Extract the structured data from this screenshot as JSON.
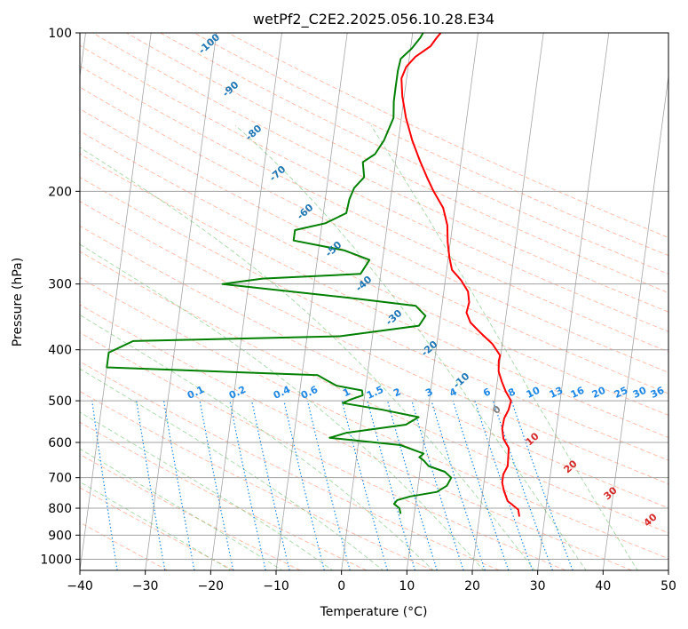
{
  "chart_data": {
    "type": "line",
    "title": "wetPf2_C2E2.2025.056.10.28.E34",
    "xlabel": "Temperature (°C)",
    "ylabel": "Pressure (hPa)",
    "xlim": [
      -40,
      50
    ],
    "ylim": [
      1050,
      100
    ],
    "y_scale": "log",
    "grid": true,
    "x_ticks": [
      "−40",
      "−30",
      "−20",
      "−10",
      "0",
      "10",
      "20",
      "30",
      "40",
      "50"
    ],
    "y_ticks": [
      {
        "p": 100,
        "label": "100"
      },
      {
        "p": 200,
        "label": "200"
      },
      {
        "p": 300,
        "label": "300"
      },
      {
        "p": 400,
        "label": "400"
      },
      {
        "p": 500,
        "label": "500"
      },
      {
        "p": 600,
        "label": "600"
      },
      {
        "p": 700,
        "label": "700"
      },
      {
        "p": 800,
        "label": "800"
      },
      {
        "p": 900,
        "label": "900"
      },
      {
        "p": 1000,
        "label": "1000"
      }
    ],
    "series": [
      {
        "color": "#ff0000",
        "points": [
          [
            26.1,
            830
          ],
          [
            25.8,
            805
          ],
          [
            24.0,
            775
          ],
          [
            23.2,
            740
          ],
          [
            22.8,
            715
          ],
          [
            22.8,
            690
          ],
          [
            23.3,
            665
          ],
          [
            23.2,
            640
          ],
          [
            23.1,
            615
          ],
          [
            22.1,
            590
          ],
          [
            21.7,
            565
          ],
          [
            21.8,
            540
          ],
          [
            22.3,
            520
          ],
          [
            22.5,
            500
          ],
          [
            21.5,
            480
          ],
          [
            20.7,
            460
          ],
          [
            20.0,
            440
          ],
          [
            19.8,
            420
          ],
          [
            19.9,
            410
          ],
          [
            18.5,
            390
          ],
          [
            16.3,
            370
          ],
          [
            14.7,
            355
          ],
          [
            13.9,
            340
          ],
          [
            14.1,
            325
          ],
          [
            13.7,
            310
          ],
          [
            12.4,
            295
          ],
          [
            10.8,
            282
          ],
          [
            10.2,
            268
          ],
          [
            9.6,
            250
          ],
          [
            9.2,
            232
          ],
          [
            8.2,
            215
          ],
          [
            6.4,
            200
          ],
          [
            5.1,
            188
          ],
          [
            3.7,
            175
          ],
          [
            2.1,
            160
          ],
          [
            0.7,
            145
          ],
          [
            -0.3,
            132
          ],
          [
            -0.8,
            122
          ],
          [
            -0.3,
            116
          ],
          [
            0.9,
            111
          ],
          [
            3.0,
            106
          ],
          [
            3.8,
            102
          ],
          [
            4.3,
            100
          ]
        ]
      },
      {
        "color": "#008000",
        "points": [
          [
            7.9,
            820
          ],
          [
            7.6,
            800
          ],
          [
            6.7,
            785
          ],
          [
            7.1,
            772
          ],
          [
            9.0,
            760
          ],
          [
            13.0,
            745
          ],
          [
            14.4,
            725
          ],
          [
            14.9,
            700
          ],
          [
            13.8,
            682
          ],
          [
            11.2,
            665
          ],
          [
            10.4,
            650
          ],
          [
            9.6,
            640
          ],
          [
            10.2,
            630
          ],
          [
            6.5,
            607
          ],
          [
            -4.5,
            588
          ],
          [
            -2.0,
            575
          ],
          [
            6.9,
            555
          ],
          [
            8.7,
            537
          ],
          [
            3.0,
            520
          ],
          [
            -3.2,
            505
          ],
          [
            -2.2,
            498
          ],
          [
            -0.3,
            488
          ],
          [
            -0.5,
            478
          ],
          [
            -4.5,
            468
          ],
          [
            -6.0,
            458
          ],
          [
            -7.6,
            447
          ],
          [
            -40.0,
            432
          ],
          [
            -40.0,
            405
          ],
          [
            -36.5,
            385
          ],
          [
            -5.0,
            377
          ],
          [
            6.9,
            360
          ],
          [
            7.7,
            345
          ],
          [
            6.0,
            330
          ],
          [
            -4.0,
            319
          ],
          [
            -24.0,
            300
          ],
          [
            -18.0,
            293
          ],
          [
            -3.1,
            287
          ],
          [
            -2.0,
            270
          ],
          [
            -6.0,
            259
          ],
          [
            -14.0,
            248
          ],
          [
            -14.0,
            237
          ],
          [
            -9.5,
            230
          ],
          [
            -6.5,
            220
          ],
          [
            -6.3,
            207
          ],
          [
            -5.8,
            197
          ],
          [
            -4.5,
            188
          ],
          [
            -5.0,
            176
          ],
          [
            -3.3,
            170
          ],
          [
            -2.2,
            160
          ],
          [
            -1.2,
            145
          ],
          [
            -1.5,
            135
          ],
          [
            -1.5,
            127
          ],
          [
            -1.5,
            118
          ],
          [
            -1.3,
            112
          ],
          [
            0.2,
            107
          ],
          [
            1.3,
            102
          ],
          [
            1.6,
            100
          ]
        ]
      }
    ],
    "dry_adiabat_labels": [
      "-100",
      "-90",
      "-80",
      "-70",
      "-60",
      "-50",
      "-40",
      "-30",
      "-20",
      "-10",
      "0",
      "10",
      "20",
      "30",
      "40"
    ],
    "mixing_ratio_labels": [
      "0.1",
      "0.2",
      "0.4",
      "0.6",
      "1",
      "1.5",
      "2",
      "3",
      "4",
      "6",
      "8",
      "10",
      "13",
      "16",
      "20",
      "25",
      "30",
      "36"
    ],
    "colors": {
      "temperature": "#ff0000",
      "dewpoint": "#008000",
      "isotherm": "#7f7f7f",
      "dry_adiabat": "#ff8c69",
      "moist_adiabat": "#6cbf6c",
      "mixing_ratio": "#1e88e5",
      "label_blue": "#1f77b4",
      "label_red": "#d62728"
    }
  }
}
